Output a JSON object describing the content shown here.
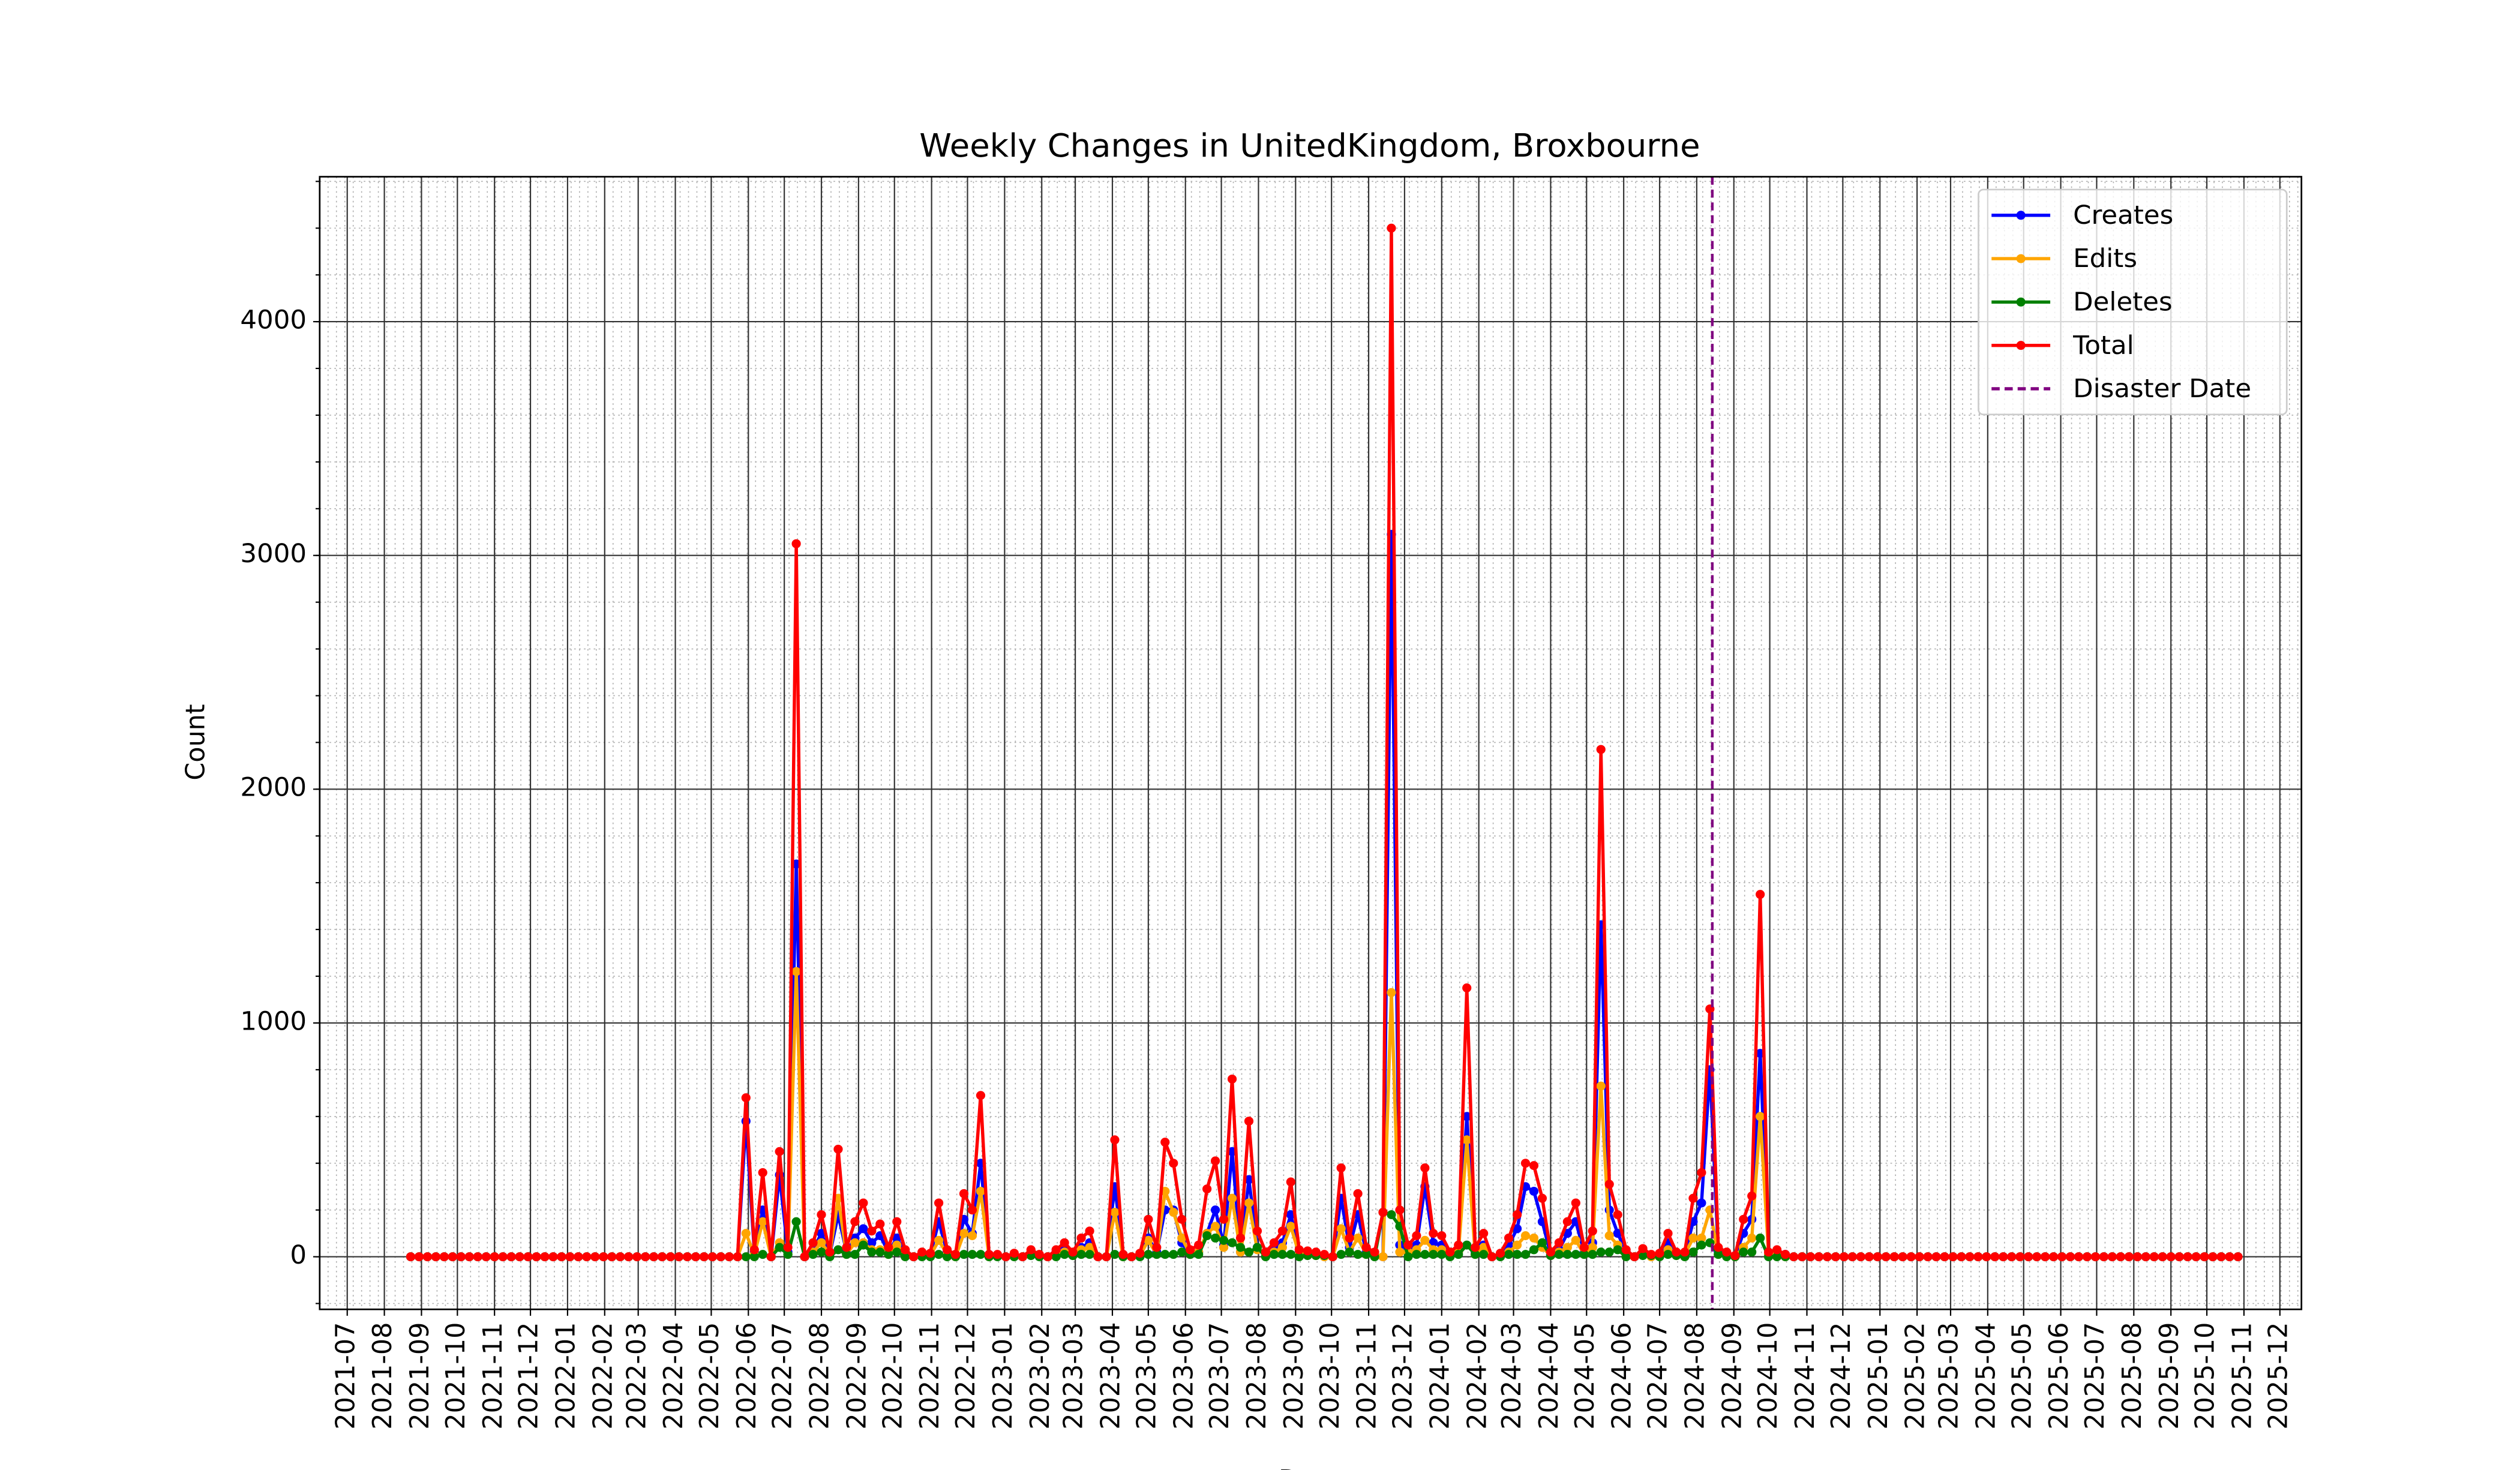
{
  "chart_data": {
    "type": "line",
    "title": "Weekly Changes in UnitedKingdom, Broxbourne",
    "xlabel": "Date",
    "ylabel": "Count",
    "x": [
      "2021-08-23",
      "2021-08-30",
      "2021-09-06",
      "2021-09-13",
      "2021-09-20",
      "2021-09-27",
      "2021-10-04",
      "2021-10-11",
      "2021-10-18",
      "2021-10-25",
      "2021-11-01",
      "2021-11-08",
      "2021-11-15",
      "2021-11-22",
      "2021-11-29",
      "2021-12-06",
      "2021-12-13",
      "2021-12-20",
      "2021-12-27",
      "2022-01-03",
      "2022-01-10",
      "2022-01-17",
      "2022-01-24",
      "2022-01-31",
      "2022-02-07",
      "2022-02-14",
      "2022-02-21",
      "2022-02-28",
      "2022-03-07",
      "2022-03-14",
      "2022-03-21",
      "2022-03-28",
      "2022-04-04",
      "2022-04-11",
      "2022-04-18",
      "2022-04-25",
      "2022-05-02",
      "2022-05-09",
      "2022-05-16",
      "2022-05-23",
      "2022-05-30",
      "2022-06-06",
      "2022-06-13",
      "2022-06-20",
      "2022-06-27",
      "2022-07-04",
      "2022-07-11",
      "2022-07-18",
      "2022-07-25",
      "2022-08-01",
      "2022-08-08",
      "2022-08-15",
      "2022-08-22",
      "2022-08-29",
      "2022-09-05",
      "2022-09-12",
      "2022-09-19",
      "2022-09-26",
      "2022-10-03",
      "2022-10-10",
      "2022-10-17",
      "2022-10-24",
      "2022-10-31",
      "2022-11-07",
      "2022-11-14",
      "2022-11-21",
      "2022-11-28",
      "2022-12-05",
      "2022-12-12",
      "2022-12-19",
      "2022-12-26",
      "2023-01-02",
      "2023-01-09",
      "2023-01-16",
      "2023-01-23",
      "2023-01-30",
      "2023-02-06",
      "2023-02-13",
      "2023-02-20",
      "2023-02-27",
      "2023-03-06",
      "2023-03-13",
      "2023-03-20",
      "2023-03-27",
      "2023-04-03",
      "2023-04-10",
      "2023-04-17",
      "2023-04-24",
      "2023-05-01",
      "2023-05-08",
      "2023-05-15",
      "2023-05-22",
      "2023-05-29",
      "2023-06-05",
      "2023-06-12",
      "2023-06-19",
      "2023-06-26",
      "2023-07-03",
      "2023-07-10",
      "2023-07-17",
      "2023-07-24",
      "2023-07-31",
      "2023-08-07",
      "2023-08-14",
      "2023-08-21",
      "2023-08-28",
      "2023-09-04",
      "2023-09-11",
      "2023-09-18",
      "2023-09-25",
      "2023-10-02",
      "2023-10-09",
      "2023-10-16",
      "2023-10-23",
      "2023-10-30",
      "2023-11-06",
      "2023-11-13",
      "2023-11-20",
      "2023-11-27",
      "2023-12-04",
      "2023-12-11",
      "2023-12-18",
      "2023-12-25",
      "2024-01-01",
      "2024-01-08",
      "2024-01-15",
      "2024-01-22",
      "2024-01-29",
      "2024-02-05",
      "2024-02-12",
      "2024-02-19",
      "2024-02-26",
      "2024-03-04",
      "2024-03-11",
      "2024-03-18",
      "2024-03-25",
      "2024-04-01",
      "2024-04-08",
      "2024-04-15",
      "2024-04-22",
      "2024-04-29",
      "2024-05-06",
      "2024-05-13",
      "2024-05-20",
      "2024-05-27",
      "2024-06-03",
      "2024-06-10",
      "2024-06-17",
      "2024-06-24",
      "2024-07-01",
      "2024-07-08",
      "2024-07-15",
      "2024-07-22",
      "2024-07-29",
      "2024-08-05",
      "2024-08-12",
      "2024-08-19",
      "2024-08-26",
      "2024-09-02",
      "2024-09-09",
      "2024-09-16",
      "2024-09-23",
      "2024-09-30",
      "2024-10-07",
      "2024-10-14",
      "2024-10-21",
      "2024-10-28",
      "2024-11-04",
      "2024-11-11",
      "2024-11-18",
      "2024-11-25",
      "2024-12-02",
      "2024-12-09",
      "2024-12-16",
      "2024-12-23",
      "2024-12-30",
      "2025-01-06",
      "2025-01-13",
      "2025-01-20",
      "2025-01-27",
      "2025-02-03",
      "2025-02-10",
      "2025-02-17",
      "2025-02-24",
      "2025-03-03",
      "2025-03-10",
      "2025-03-17",
      "2025-03-24",
      "2025-03-31",
      "2025-04-07",
      "2025-04-14",
      "2025-04-21",
      "2025-04-28",
      "2025-05-05",
      "2025-05-12",
      "2025-05-19",
      "2025-05-26",
      "2025-06-02",
      "2025-06-09",
      "2025-06-16",
      "2025-06-23",
      "2025-06-30",
      "2025-07-07",
      "2025-07-14",
      "2025-07-21",
      "2025-07-28",
      "2025-08-04",
      "2025-08-11",
      "2025-08-18",
      "2025-08-25",
      "2025-09-01",
      "2025-09-08",
      "2025-09-15",
      "2025-09-22",
      "2025-09-29",
      "2025-10-06",
      "2025-10-13",
      "2025-10-20",
      "2025-10-27"
    ],
    "series": [
      {
        "name": "Creates",
        "color": "#0000ff",
        "values": [
          0,
          0,
          0,
          0,
          0,
          0,
          0,
          0,
          0,
          0,
          0,
          0,
          0,
          0,
          0,
          0,
          0,
          0,
          0,
          0,
          0,
          0,
          0,
          0,
          0,
          0,
          0,
          0,
          0,
          0,
          0,
          0,
          0,
          0,
          0,
          0,
          0,
          0,
          0,
          0,
          580,
          20,
          200,
          0,
          350,
          20,
          1680,
          0,
          30,
          100,
          10,
          180,
          20,
          80,
          120,
          60,
          90,
          20,
          80,
          20,
          0,
          10,
          10,
          150,
          20,
          10,
          160,
          100,
          400,
          10,
          5,
          0,
          10,
          0,
          15,
          5,
          0,
          20,
          30,
          10,
          40,
          60,
          0,
          0,
          300,
          10,
          0,
          10,
          80,
          20,
          200,
          200,
          60,
          10,
          20,
          100,
          200,
          50,
          450,
          20,
          330,
          40,
          10,
          30,
          60,
          180,
          20,
          10,
          10,
          5,
          0,
          250,
          40,
          180,
          20,
          10,
          0,
          3090,
          50,
          30,
          50,
          300,
          60,
          50,
          10,
          20,
          600,
          20,
          50,
          0,
          10,
          50,
          120,
          300,
          280,
          150,
          10,
          30,
          100,
          150,
          20,
          60,
          1420,
          200,
          100,
          20,
          0,
          20,
          5,
          10,
          60,
          10,
          10,
          150,
          230,
          800,
          20,
          10,
          5,
          100,
          160,
          870,
          10,
          20,
          10,
          0,
          0,
          0,
          0,
          0,
          0,
          0,
          0,
          0,
          0,
          0,
          0,
          0,
          0,
          0,
          0,
          0,
          0,
          0,
          0,
          0,
          0,
          0,
          0,
          0,
          0,
          0,
          0,
          0,
          0,
          0,
          0,
          0,
          0,
          0,
          0,
          0,
          0,
          0,
          0,
          0,
          0,
          0,
          0,
          0,
          0,
          0,
          0,
          0,
          0,
          0,
          0,
          0,
          0
        ]
      },
      {
        "name": "Edits",
        "color": "#ffa500",
        "values": [
          0,
          0,
          0,
          0,
          0,
          0,
          0,
          0,
          0,
          0,
          0,
          0,
          0,
          0,
          0,
          0,
          0,
          0,
          0,
          0,
          0,
          0,
          0,
          0,
          0,
          0,
          0,
          0,
          0,
          0,
          0,
          0,
          0,
          0,
          0,
          0,
          0,
          0,
          0,
          0,
          100,
          10,
          150,
          0,
          60,
          10,
          1220,
          0,
          20,
          60,
          10,
          250,
          10,
          60,
          60,
          30,
          30,
          10,
          50,
          10,
          0,
          10,
          5,
          70,
          10,
          0,
          100,
          90,
          280,
          0,
          5,
          0,
          5,
          0,
          10,
          5,
          0,
          10,
          20,
          5,
          30,
          40,
          0,
          0,
          190,
          0,
          0,
          5,
          70,
          10,
          280,
          190,
          80,
          10,
          20,
          100,
          130,
          40,
          250,
          20,
          230,
          30,
          10,
          20,
          40,
          130,
          10,
          10,
          5,
          0,
          0,
          120,
          20,
          80,
          10,
          10,
          0,
          1130,
          20,
          20,
          30,
          70,
          30,
          30,
          10,
          20,
          500,
          10,
          40,
          0,
          5,
          20,
          50,
          90,
          80,
          40,
          5,
          20,
          40,
          70,
          10,
          40,
          730,
          90,
          50,
          10,
          0,
          10,
          0,
          5,
          30,
          5,
          10,
          80,
          80,
          200,
          10,
          10,
          0,
          40,
          80,
          600,
          10,
          10,
          0,
          0,
          0,
          0,
          0,
          0,
          0,
          0,
          0,
          0,
          0,
          0,
          0,
          0,
          0,
          0,
          0,
          0,
          0,
          0,
          0,
          0,
          0,
          0,
          0,
          0,
          0,
          0,
          0,
          0,
          0,
          0,
          0,
          0,
          0,
          0,
          0,
          0,
          0,
          0,
          0,
          0,
          0,
          0,
          0,
          0,
          0,
          0,
          0,
          0,
          0,
          0,
          0,
          0,
          0
        ]
      },
      {
        "name": "Deletes",
        "color": "#008000",
        "values": [
          0,
          0,
          0,
          0,
          0,
          0,
          0,
          0,
          0,
          0,
          0,
          0,
          0,
          0,
          0,
          0,
          0,
          0,
          0,
          0,
          0,
          0,
          0,
          0,
          0,
          0,
          0,
          0,
          0,
          0,
          0,
          0,
          0,
          0,
          0,
          0,
          0,
          0,
          0,
          0,
          0,
          0,
          10,
          0,
          40,
          10,
          150,
          0,
          10,
          20,
          0,
          30,
          10,
          10,
          50,
          20,
          20,
          10,
          20,
          0,
          0,
          0,
          0,
          10,
          0,
          0,
          10,
          10,
          10,
          0,
          0,
          0,
          0,
          0,
          5,
          0,
          0,
          0,
          10,
          5,
          10,
          10,
          0,
          0,
          10,
          0,
          0,
          0,
          10,
          10,
          10,
          10,
          20,
          10,
          10,
          90,
          80,
          70,
          60,
          40,
          20,
          40,
          0,
          10,
          10,
          10,
          0,
          5,
          5,
          5,
          0,
          10,
          20,
          10,
          10,
          0,
          190,
          180,
          130,
          0,
          10,
          10,
          10,
          10,
          0,
          10,
          50,
          10,
          10,
          0,
          0,
          10,
          10,
          10,
          30,
          60,
          5,
          10,
          10,
          10,
          10,
          10,
          20,
          20,
          30,
          0,
          0,
          5,
          5,
          0,
          10,
          5,
          0,
          20,
          50,
          60,
          10,
          0,
          0,
          20,
          20,
          80,
          0,
          0,
          0,
          0,
          0,
          0,
          0,
          0,
          0,
          0,
          0,
          0,
          0,
          0,
          0,
          0,
          0,
          0,
          0,
          0,
          0,
          0,
          0,
          0,
          0,
          0,
          0,
          0,
          0,
          0,
          0,
          0,
          0,
          0,
          0,
          0,
          0,
          0,
          0,
          0,
          0,
          0,
          0,
          0,
          0,
          0,
          0,
          0,
          0,
          0,
          0,
          0,
          0,
          0,
          0,
          0,
          0
        ]
      },
      {
        "name": "Total",
        "color": "#ff0000",
        "values": [
          0,
          0,
          0,
          0,
          0,
          0,
          0,
          0,
          0,
          0,
          0,
          0,
          0,
          0,
          0,
          0,
          0,
          0,
          0,
          0,
          0,
          0,
          0,
          0,
          0,
          0,
          0,
          0,
          0,
          0,
          0,
          0,
          0,
          0,
          0,
          0,
          0,
          0,
          0,
          0,
          680,
          30,
          360,
          0,
          450,
          40,
          3050,
          0,
          60,
          180,
          20,
          460,
          40,
          150,
          230,
          110,
          140,
          40,
          150,
          30,
          0,
          20,
          15,
          230,
          30,
          10,
          270,
          200,
          690,
          10,
          10,
          0,
          15,
          0,
          30,
          10,
          0,
          30,
          60,
          20,
          80,
          110,
          0,
          0,
          500,
          10,
          0,
          15,
          160,
          40,
          490,
          400,
          160,
          30,
          50,
          290,
          410,
          160,
          760,
          80,
          580,
          110,
          20,
          60,
          110,
          320,
          30,
          25,
          20,
          10,
          0,
          380,
          80,
          270,
          40,
          20,
          190,
          4400,
          200,
          50,
          90,
          380,
          100,
          90,
          20,
          50,
          1150,
          40,
          100,
          0,
          15,
          80,
          180,
          400,
          390,
          250,
          20,
          60,
          150,
          230,
          40,
          110,
          2170,
          310,
          180,
          30,
          0,
          35,
          10,
          15,
          100,
          20,
          20,
          250,
          360,
          1060,
          40,
          20,
          5,
          160,
          260,
          1550,
          20,
          30,
          10,
          0,
          0,
          0,
          0,
          0,
          0,
          0,
          0,
          0,
          0,
          0,
          0,
          0,
          0,
          0,
          0,
          0,
          0,
          0,
          0,
          0,
          0,
          0,
          0,
          0,
          0,
          0,
          0,
          0,
          0,
          0,
          0,
          0,
          0,
          0,
          0,
          0,
          0,
          0,
          0,
          0,
          0,
          0,
          0,
          0,
          0,
          0,
          0,
          0,
          0,
          0,
          0,
          0,
          0
        ]
      }
    ],
    "disaster_date": "2024-08-14",
    "disaster_label": "Disaster Date",
    "disaster_color": "#800080",
    "xlim": [
      "2021-06-08",
      "2025-12-19"
    ],
    "xticks": [
      "2021-07",
      "2021-08",
      "2021-09",
      "2021-10",
      "2021-11",
      "2021-12",
      "2022-01",
      "2022-02",
      "2022-03",
      "2022-04",
      "2022-05",
      "2022-06",
      "2022-07",
      "2022-08",
      "2022-09",
      "2022-10",
      "2022-11",
      "2022-12",
      "2023-01",
      "2023-02",
      "2023-03",
      "2023-04",
      "2023-05",
      "2023-06",
      "2023-07",
      "2023-08",
      "2023-09",
      "2023-10",
      "2023-11",
      "2023-12",
      "2024-01",
      "2024-02",
      "2024-03",
      "2024-04",
      "2024-05",
      "2024-06",
      "2024-07",
      "2024-08",
      "2024-09",
      "2024-10",
      "2024-11",
      "2024-12",
      "2025-01",
      "2025-02",
      "2025-03",
      "2025-04",
      "2025-05",
      "2025-06",
      "2025-07",
      "2025-08",
      "2025-09",
      "2025-10",
      "2025-11",
      "2025-12"
    ],
    "ylim": [
      -225,
      4620
    ],
    "yticks": [
      0,
      1000,
      2000,
      3000,
      4000
    ],
    "grid": true,
    "legend": "upper right"
  }
}
